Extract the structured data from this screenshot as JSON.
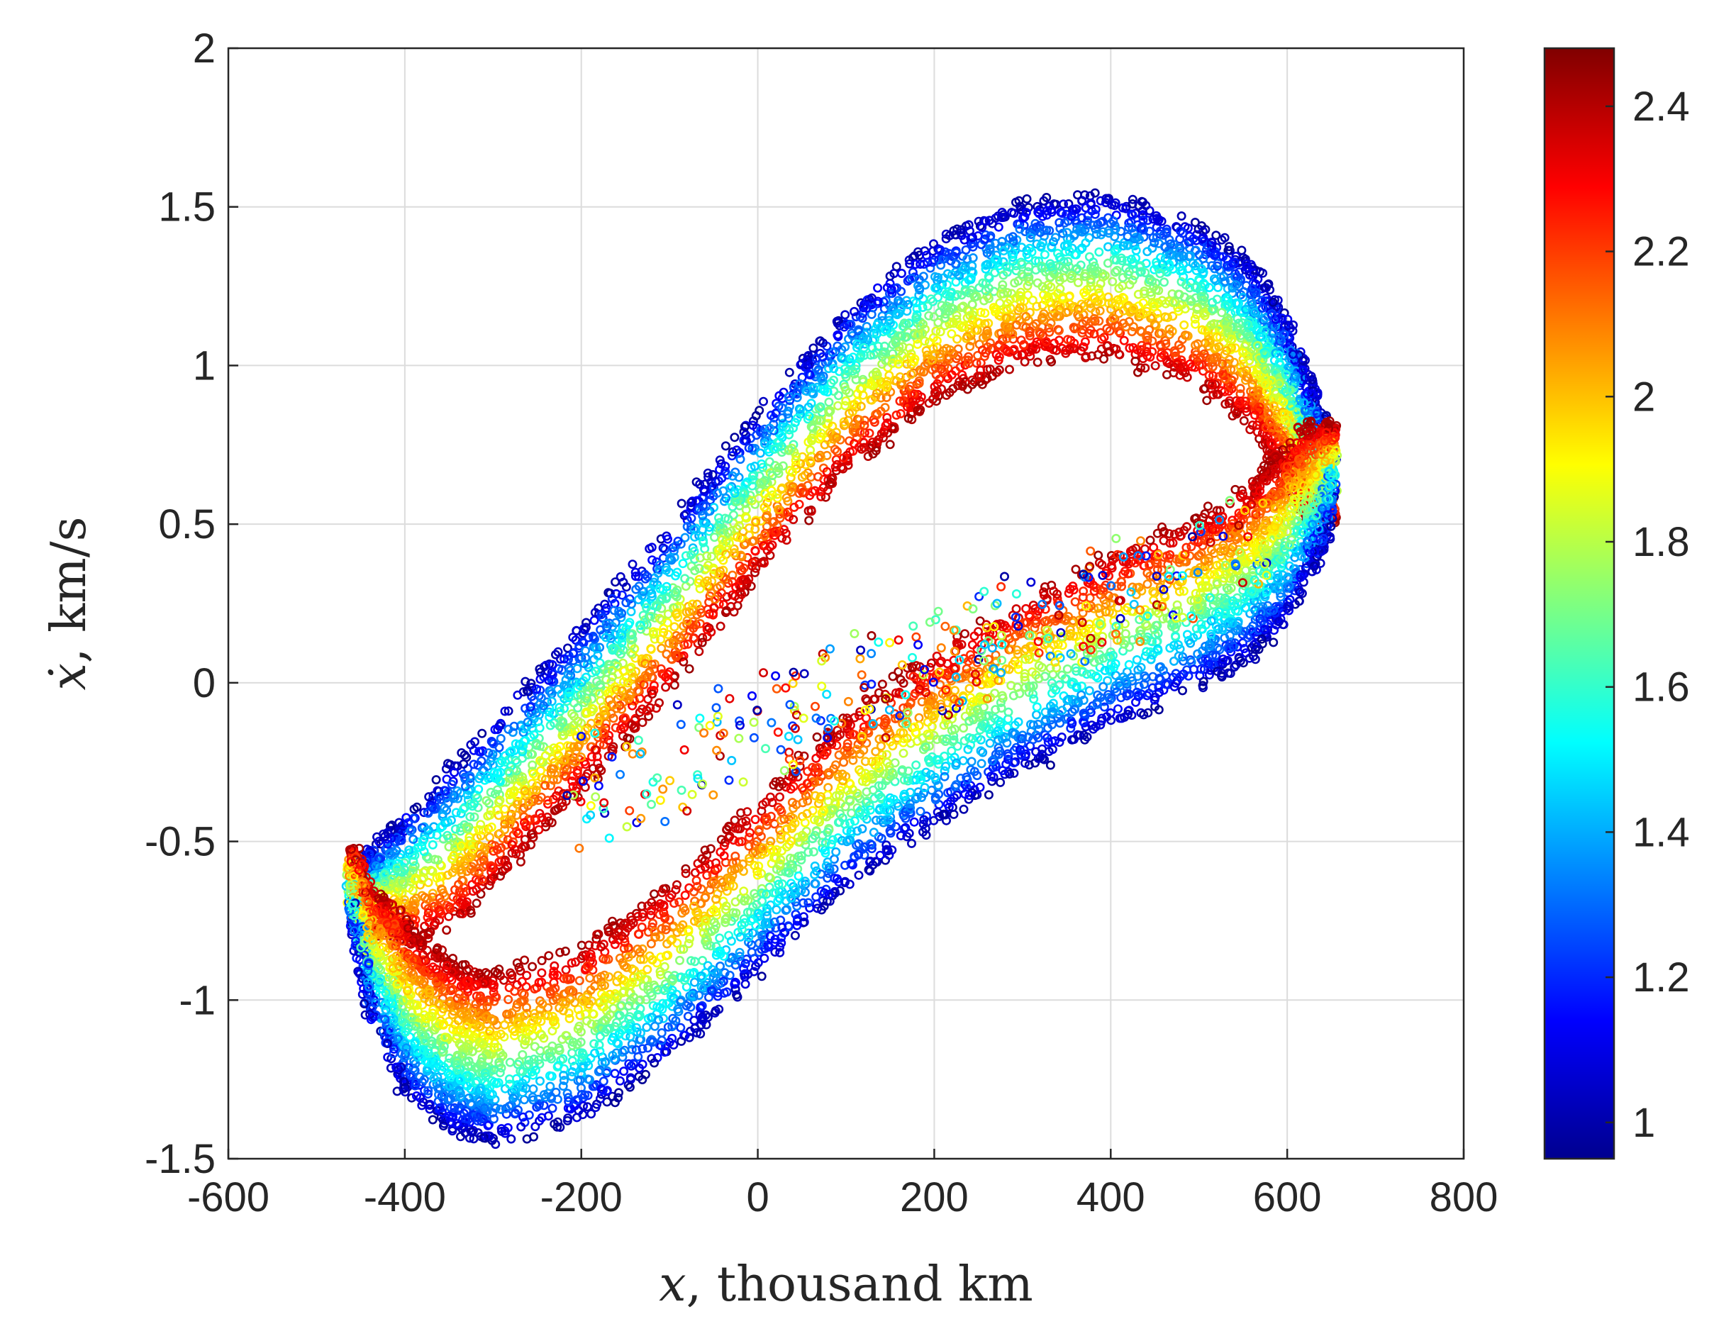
{
  "chart_data": {
    "type": "scatter",
    "xlabel_var": "x",
    "xlabel_rest": ", thousand km",
    "ylabel_var": "ẋ",
    "ylabel_rest": ", km/s",
    "xlim": [
      -600,
      800
    ],
    "ylim": [
      -1.5,
      2
    ],
    "xticks": [
      -600,
      -400,
      -200,
      0,
      200,
      400,
      600,
      800
    ],
    "yticks": [
      -1.5,
      -1,
      -0.5,
      0,
      0.5,
      1,
      1.5,
      2
    ],
    "xtick_labels": [
      "-600",
      "-400",
      "-200",
      "0",
      "200",
      "400",
      "600",
      "800"
    ],
    "ytick_labels": [
      "-1.5",
      "-1",
      "-0.5",
      "0",
      "0.5",
      "1",
      "1.5",
      "2"
    ],
    "grid": true,
    "marker": "open-circle",
    "colorbar": {
      "colormap": "jet",
      "clim": [
        0.95,
        2.48
      ],
      "ticks": [
        1,
        1.2,
        1.4,
        1.6,
        1.8,
        2,
        2.2,
        2.4
      ],
      "tick_labels": [
        "1",
        "1.2",
        "1.4",
        "1.6",
        "1.8",
        "2",
        "2.2",
        "2.4"
      ]
    },
    "bands": [
      {
        "name": "upper-outer",
        "points_x": [
          -460,
          -400,
          -300,
          -200,
          -100,
          0,
          100,
          200,
          300,
          400,
          500,
          560,
          600,
          630,
          650
        ],
        "points_y": [
          -0.58,
          -0.42,
          -0.12,
          0.18,
          0.5,
          0.86,
          1.18,
          1.4,
          1.52,
          1.54,
          1.45,
          1.32,
          1.15,
          0.92,
          0.7
        ],
        "width": 0.52,
        "outer_color": 0.98,
        "inner_color": 2.44
      },
      {
        "name": "lower-outer",
        "points_x": [
          -460,
          -440,
          -400,
          -350,
          -300,
          -200,
          -100,
          0,
          100,
          200,
          300,
          400,
          500,
          560,
          600,
          640,
          650
        ],
        "points_y": [
          -0.7,
          -1.05,
          -1.3,
          -1.42,
          -1.46,
          -1.38,
          -1.18,
          -0.92,
          -0.65,
          -0.45,
          -0.28,
          -0.14,
          -0.02,
          0.08,
          0.2,
          0.42,
          0.62
        ],
        "width": 0.55,
        "outer_color": 0.98,
        "inner_color": 2.44
      }
    ]
  }
}
